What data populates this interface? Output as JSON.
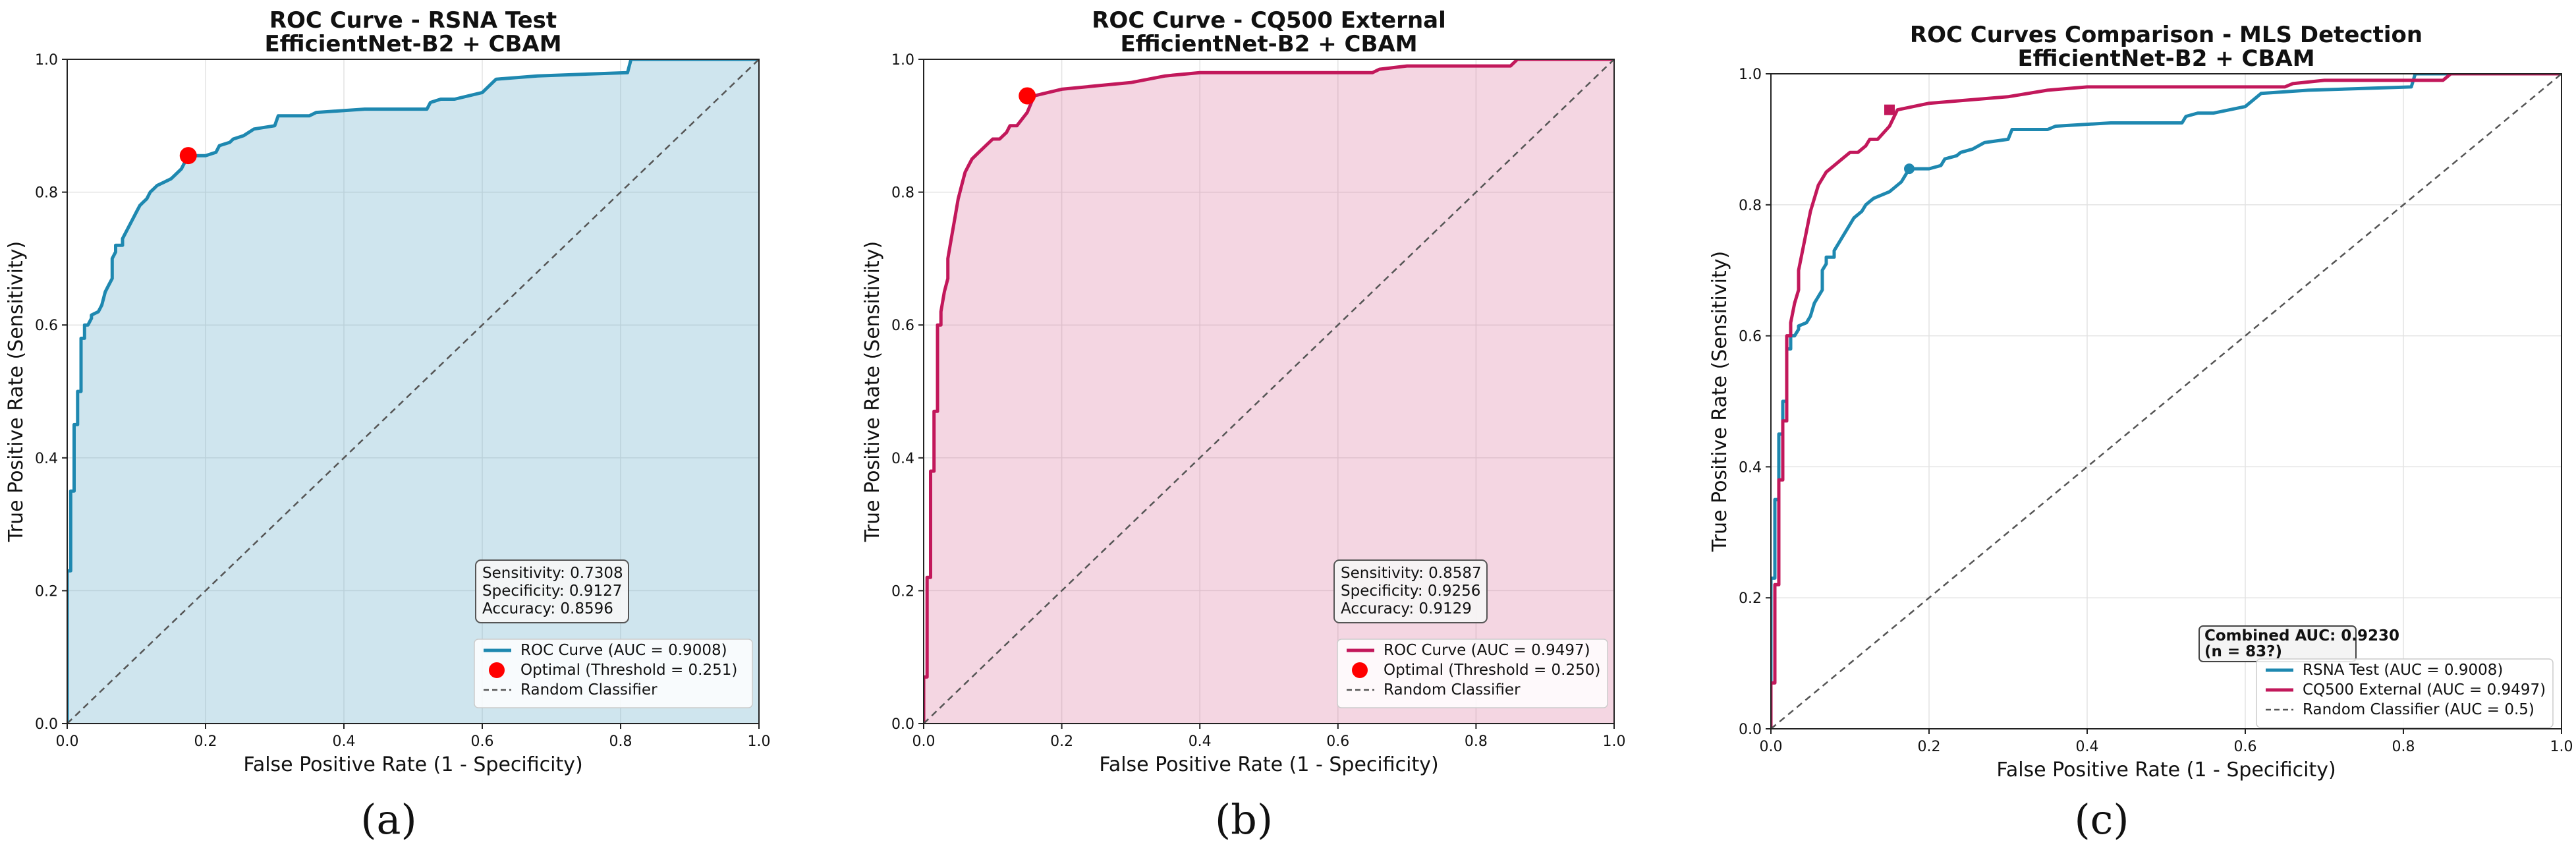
{
  "chart_data": [
    {
      "type": "line",
      "title": "ROC Curve - RSNA Test",
      "subtitle": "EfficientNet-B2 + CBAM",
      "xlabel": "False Positive Rate (1 - Specificity)",
      "ylabel": "True Positive Rate (Sensitivity)",
      "xlim": [
        0,
        1
      ],
      "ylim": [
        0,
        1
      ],
      "xticks": [
        "0.0",
        "0.2",
        "0.4",
        "0.6",
        "0.8",
        "1.0"
      ],
      "yticks": [
        "0.0",
        "0.2",
        "0.4",
        "0.6",
        "0.8",
        "1.0"
      ],
      "grid": true,
      "fill_under_curve": true,
      "legend_position": "lower-right",
      "series": [
        {
          "name": "ROC Curve (AUC = 0.9008)",
          "color": "#1e88b0",
          "x": [
            0,
            0,
            0.005,
            0.005,
            0.01,
            0.01,
            0.015,
            0.015,
            0.02,
            0.02,
            0.025,
            0.025,
            0.03,
            0.035,
            0.035,
            0.045,
            0.05,
            0.055,
            0.06,
            0.065,
            0.065,
            0.07,
            0.07,
            0.08,
            0.08,
            0.09,
            0.095,
            0.1,
            0.105,
            0.11,
            0.115,
            0.12,
            0.125,
            0.13,
            0.14,
            0.15,
            0.155,
            0.16,
            0.165,
            0.17,
            0.175,
            0.2,
            0.215,
            0.22,
            0.235,
            0.24,
            0.255,
            0.27,
            0.3,
            0.305,
            0.35,
            0.36,
            0.43,
            0.52,
            0.525,
            0.54,
            0.56,
            0.6,
            0.62,
            0.68,
            0.81,
            0.815,
            1.0
          ],
          "y": [
            0,
            0.23,
            0.23,
            0.35,
            0.35,
            0.45,
            0.45,
            0.5,
            0.5,
            0.58,
            0.58,
            0.6,
            0.6,
            0.61,
            0.615,
            0.62,
            0.63,
            0.65,
            0.66,
            0.67,
            0.7,
            0.71,
            0.72,
            0.72,
            0.73,
            0.75,
            0.76,
            0.77,
            0.78,
            0.785,
            0.79,
            0.8,
            0.805,
            0.81,
            0.815,
            0.82,
            0.825,
            0.83,
            0.835,
            0.845,
            0.855,
            0.855,
            0.86,
            0.87,
            0.875,
            0.88,
            0.885,
            0.895,
            0.9,
            0.915,
            0.915,
            0.92,
            0.925,
            0.925,
            0.935,
            0.94,
            0.94,
            0.95,
            0.97,
            0.975,
            0.98,
            1.0,
            1.0
          ]
        },
        {
          "name": "Optimal (Threshold = 0.251)",
          "color": "#ff0000",
          "x": [
            0.175
          ],
          "y": [
            0.855
          ]
        },
        {
          "name": "Random Classifier",
          "color": "#555555",
          "x": [
            0,
            1
          ],
          "y": [
            0,
            1
          ]
        }
      ],
      "stats_box": [
        "Sensitivity: 0.7308",
        "Specificity: 0.9127",
        "Accuracy: 0.8596"
      ],
      "caption": "(a)"
    },
    {
      "type": "line",
      "title": "ROC Curve - CQ500 External",
      "subtitle": "EfficientNet-B2 + CBAM",
      "xlabel": "False Positive Rate (1 - Specificity)",
      "ylabel": "True Positive Rate (Sensitivity)",
      "xlim": [
        0,
        1
      ],
      "ylim": [
        0,
        1
      ],
      "xticks": [
        "0.0",
        "0.2",
        "0.4",
        "0.6",
        "0.8",
        "1.0"
      ],
      "yticks": [
        "0.0",
        "0.2",
        "0.4",
        "0.6",
        "0.8",
        "1.0"
      ],
      "grid": true,
      "fill_under_curve": true,
      "legend_position": "lower-right",
      "series": [
        {
          "name": "ROC Curve (AUC = 0.9497)",
          "color": "#c2185b",
          "x": [
            0,
            0,
            0.005,
            0.005,
            0.01,
            0.01,
            0.015,
            0.015,
            0.02,
            0.02,
            0.025,
            0.025,
            0.03,
            0.035,
            0.035,
            0.04,
            0.045,
            0.05,
            0.055,
            0.06,
            0.065,
            0.07,
            0.08,
            0.09,
            0.1,
            0.11,
            0.12,
            0.125,
            0.135,
            0.15,
            0.16,
            0.18,
            0.2,
            0.25,
            0.3,
            0.35,
            0.4,
            0.65,
            0.66,
            0.7,
            0.85,
            0.86,
            0.93,
            1.0
          ],
          "y": [
            0,
            0.07,
            0.07,
            0.22,
            0.22,
            0.38,
            0.38,
            0.47,
            0.47,
            0.6,
            0.6,
            0.62,
            0.65,
            0.67,
            0.7,
            0.73,
            0.76,
            0.79,
            0.81,
            0.83,
            0.84,
            0.85,
            0.86,
            0.87,
            0.88,
            0.88,
            0.89,
            0.9,
            0.9,
            0.92,
            0.945,
            0.95,
            0.955,
            0.96,
            0.965,
            0.975,
            0.98,
            0.98,
            0.985,
            0.99,
            0.99,
            1.0,
            1.0,
            1.0
          ]
        },
        {
          "name": "Optimal (Threshold = 0.250)",
          "color": "#ff0000",
          "x": [
            0.15
          ],
          "y": [
            0.945
          ]
        },
        {
          "name": "Random Classifier",
          "color": "#555555",
          "x": [
            0,
            1
          ],
          "y": [
            0,
            1
          ]
        }
      ],
      "stats_box": [
        "Sensitivity: 0.8587",
        "Specificity: 0.9256",
        "Accuracy: 0.9129"
      ],
      "caption": "(b)"
    },
    {
      "type": "line",
      "title": "ROC Curves Comparison - MLS Detection",
      "subtitle": "EfficientNet-B2 + CBAM",
      "xlabel": "False Positive Rate (1 - Specificity)",
      "ylabel": "True Positive Rate (Sensitivity)",
      "xlim": [
        0,
        1
      ],
      "ylim": [
        0,
        1
      ],
      "xticks": [
        "0.0",
        "0.2",
        "0.4",
        "0.6",
        "0.8",
        "1.0"
      ],
      "yticks": [
        "0.0",
        "0.2",
        "0.4",
        "0.6",
        "0.8",
        "1.0"
      ],
      "grid": true,
      "fill_under_curve": false,
      "legend_position": "lower-right",
      "series": [
        {
          "name": "RSNA Test (AUC = 0.9008)",
          "color": "#1e88b0",
          "x": [
            0,
            0,
            0.005,
            0.005,
            0.01,
            0.01,
            0.015,
            0.015,
            0.02,
            0.02,
            0.025,
            0.025,
            0.03,
            0.035,
            0.035,
            0.045,
            0.05,
            0.055,
            0.06,
            0.065,
            0.065,
            0.07,
            0.07,
            0.08,
            0.08,
            0.09,
            0.095,
            0.1,
            0.105,
            0.11,
            0.115,
            0.12,
            0.125,
            0.13,
            0.14,
            0.15,
            0.155,
            0.16,
            0.165,
            0.17,
            0.175,
            0.2,
            0.215,
            0.22,
            0.235,
            0.24,
            0.255,
            0.27,
            0.3,
            0.305,
            0.35,
            0.36,
            0.43,
            0.52,
            0.525,
            0.54,
            0.56,
            0.6,
            0.62,
            0.68,
            0.81,
            0.815,
            1.0
          ],
          "y": [
            0,
            0.23,
            0.23,
            0.35,
            0.35,
            0.45,
            0.45,
            0.5,
            0.5,
            0.58,
            0.58,
            0.6,
            0.6,
            0.61,
            0.615,
            0.62,
            0.63,
            0.65,
            0.66,
            0.67,
            0.7,
            0.71,
            0.72,
            0.72,
            0.73,
            0.75,
            0.76,
            0.77,
            0.78,
            0.785,
            0.79,
            0.8,
            0.805,
            0.81,
            0.815,
            0.82,
            0.825,
            0.83,
            0.835,
            0.845,
            0.855,
            0.855,
            0.86,
            0.87,
            0.875,
            0.88,
            0.885,
            0.895,
            0.9,
            0.915,
            0.915,
            0.92,
            0.925,
            0.925,
            0.935,
            0.94,
            0.94,
            0.95,
            0.97,
            0.975,
            0.98,
            1.0,
            1.0
          ]
        },
        {
          "name": "CQ500 External (AUC = 0.9497)",
          "color": "#c2185b",
          "x": [
            0,
            0,
            0.005,
            0.005,
            0.01,
            0.01,
            0.015,
            0.015,
            0.02,
            0.02,
            0.025,
            0.025,
            0.03,
            0.035,
            0.035,
            0.04,
            0.045,
            0.05,
            0.055,
            0.06,
            0.065,
            0.07,
            0.08,
            0.09,
            0.1,
            0.11,
            0.12,
            0.125,
            0.135,
            0.15,
            0.16,
            0.18,
            0.2,
            0.25,
            0.3,
            0.35,
            0.4,
            0.65,
            0.66,
            0.7,
            0.85,
            0.86,
            0.93,
            1.0
          ],
          "y": [
            0,
            0.07,
            0.07,
            0.22,
            0.22,
            0.38,
            0.38,
            0.47,
            0.47,
            0.6,
            0.6,
            0.62,
            0.65,
            0.67,
            0.7,
            0.73,
            0.76,
            0.79,
            0.81,
            0.83,
            0.84,
            0.85,
            0.86,
            0.87,
            0.88,
            0.88,
            0.89,
            0.9,
            0.9,
            0.92,
            0.945,
            0.95,
            0.955,
            0.96,
            0.965,
            0.975,
            0.98,
            0.98,
            0.985,
            0.99,
            0.99,
            1.0,
            1.0,
            1.0
          ]
        },
        {
          "name": "Random Classifier (AUC = 0.5)",
          "color": "#555555",
          "x": [
            0,
            1
          ],
          "y": [
            0,
            1
          ]
        }
      ],
      "markers": [
        {
          "shape": "circle",
          "color": "#1e88b0",
          "x": 0.175,
          "y": 0.855
        },
        {
          "shape": "square",
          "color": "#c2185b",
          "x": 0.15,
          "y": 0.945
        }
      ],
      "combined_box": [
        "Combined AUC: 0.9230",
        "(n = 83?)"
      ],
      "caption": "(c)"
    }
  ]
}
